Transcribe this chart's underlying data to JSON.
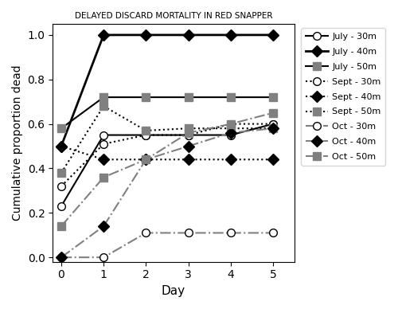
{
  "title": "DELAYED DISCARD MORTALITY IN RED SNAPPER",
  "xlabel": "Day",
  "ylabel": "Cumulative proportion dead",
  "xlim": [
    -0.2,
    5.5
  ],
  "ylim": [
    -0.02,
    1.05
  ],
  "days": [
    0,
    1,
    2,
    3,
    4,
    5
  ],
  "series": [
    {
      "label": "July - 30m",
      "values": [
        0.23,
        0.55,
        0.55,
        0.55,
        0.55,
        0.6
      ],
      "linestyle": "solid",
      "color": "black",
      "marker": "o",
      "markerfacecolor": "white",
      "markersize": 7,
      "linewidth": 1.5
    },
    {
      "label": "July - 40m",
      "values": [
        0.5,
        1.0,
        1.0,
        1.0,
        1.0,
        1.0
      ],
      "linestyle": "solid",
      "color": "black",
      "marker": "D",
      "markerfacecolor": "black",
      "markersize": 7,
      "linewidth": 2.0
    },
    {
      "label": "July - 50m",
      "values": [
        0.58,
        0.72,
        0.72,
        0.72,
        0.72,
        0.72
      ],
      "linestyle": "solid",
      "color": "black",
      "marker": "s",
      "markerfacecolor": "gray",
      "markersize": 7,
      "linewidth": 1.5
    },
    {
      "label": "Sept - 30m",
      "values": [
        0.32,
        0.51,
        0.55,
        0.55,
        0.6,
        0.6
      ],
      "linestyle": "dotted",
      "color": "black",
      "marker": "o",
      "markerfacecolor": "white",
      "markersize": 7,
      "linewidth": 1.5
    },
    {
      "label": "Sept - 40m",
      "values": [
        0.5,
        0.44,
        0.44,
        0.44,
        0.44,
        0.44
      ],
      "linestyle": "dotted",
      "color": "black",
      "marker": "D",
      "markerfacecolor": "black",
      "markersize": 7,
      "linewidth": 1.5
    },
    {
      "label": "Sept - 50m",
      "values": [
        0.38,
        0.68,
        0.57,
        0.58,
        0.58,
        0.58
      ],
      "linestyle": "dotted",
      "color": "black",
      "marker": "s",
      "markerfacecolor": "gray",
      "markersize": 7,
      "linewidth": 1.5
    },
    {
      "label": "Oct - 30m",
      "values": [
        0.0,
        0.0,
        0.11,
        0.11,
        0.11,
        0.11
      ],
      "linestyle": "dashdot",
      "color": "gray",
      "marker": "o",
      "markerfacecolor": "white",
      "markersize": 7,
      "linewidth": 1.5
    },
    {
      "label": "Oct - 40m",
      "values": [
        0.0,
        0.14,
        0.44,
        0.5,
        0.56,
        0.58
      ],
      "linestyle": "dashdot",
      "color": "gray",
      "marker": "D",
      "markerfacecolor": "black",
      "markersize": 7,
      "linewidth": 1.5
    },
    {
      "label": "Oct - 50m",
      "values": [
        0.14,
        0.36,
        0.44,
        0.56,
        0.6,
        0.65
      ],
      "linestyle": "dashdot",
      "color": "gray",
      "marker": "s",
      "markerfacecolor": "gray",
      "markersize": 7,
      "linewidth": 1.5
    }
  ]
}
